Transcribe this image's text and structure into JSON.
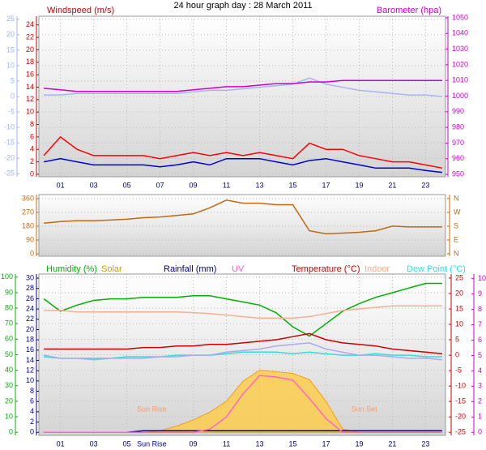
{
  "chart_data": [
    {
      "type": "line",
      "title": "24 hour graph day : 28 March 2011",
      "x": [
        0,
        1,
        2,
        3,
        4,
        5,
        6,
        7,
        8,
        9,
        10,
        11,
        12,
        13,
        14,
        15,
        16,
        17,
        18,
        19,
        20,
        21,
        22,
        23,
        24
      ],
      "xlim": [
        -0.3,
        24.2
      ],
      "xticks": [
        {
          "value": 1,
          "label": "01"
        },
        {
          "value": 3,
          "label": "03"
        },
        {
          "value": 5,
          "label": "05"
        },
        {
          "value": 7,
          "label": "07"
        },
        {
          "value": 9,
          "label": "09"
        },
        11,
        13,
        15,
        17,
        19,
        21,
        23
      ],
      "grid": true,
      "y_axes": [
        {
          "color": "#9fb4ee",
          "side": "left",
          "ylim": [
            -26,
            26
          ],
          "yticks": [
            25,
            20,
            15,
            10,
            5,
            0,
            -5,
            -10,
            -15,
            -20,
            -25
          ]
        },
        {
          "label": "Windspeed (m/s)",
          "color": "#cc0000",
          "side": "left",
          "ylim": [
            -0.4,
            25.4
          ],
          "yticks": [
            24,
            22,
            20,
            18,
            16,
            14,
            12,
            10,
            8,
            6,
            4,
            2,
            0
          ]
        },
        {
          "label": "Barometer (hpa)",
          "color": "#cc00cc",
          "side": "right",
          "ylim": [
            948.5,
            1051
          ],
          "yticks": [
            1050,
            1040,
            1030,
            1020,
            1010,
            1000,
            990,
            980,
            970,
            960,
            950
          ]
        }
      ],
      "series": [
        {
          "color": "#a8b4f0",
          "axis": 0,
          "values": [
            0.5,
            0.5,
            1,
            1,
            1,
            1,
            1,
            1,
            1,
            1.5,
            2,
            2,
            2.5,
            3,
            3.5,
            4,
            6,
            4,
            3,
            2,
            1.5,
            1,
            0.5,
            0.5,
            0
          ]
        },
        {
          "color": "#cc00cc",
          "axis": 2,
          "values": [
            1005,
            1004,
            1003,
            1003,
            1003,
            1003,
            1003,
            1003,
            1003,
            1004,
            1005,
            1006,
            1006,
            1007,
            1008,
            1008,
            1009,
            1009,
            1010,
            1010,
            1010,
            1010,
            1010,
            1010,
            1010
          ]
        },
        {
          "color": "#ff0000",
          "axis": 1,
          "values": [
            3,
            6,
            4,
            3,
            3,
            3,
            3,
            2.5,
            3,
            3.5,
            3,
            3.5,
            3,
            3.5,
            3,
            2.5,
            5,
            4,
            4,
            3,
            2.5,
            2,
            2,
            1.5,
            1
          ]
        },
        {
          "color": "#0000cc",
          "axis": 1,
          "values": [
            2,
            2.5,
            2,
            1.5,
            1.5,
            1.5,
            1.5,
            1.2,
            1.5,
            2,
            1.5,
            2.5,
            2.5,
            2.5,
            2,
            1.5,
            2.2,
            2.5,
            2,
            1.5,
            1,
            1,
            1,
            0.6,
            0.3
          ]
        }
      ]
    },
    {
      "type": "line",
      "x": [
        0,
        1,
        2,
        3,
        4,
        5,
        6,
        7,
        8,
        9,
        10,
        11,
        12,
        13,
        14,
        15,
        16,
        17,
        18,
        19,
        20,
        21,
        22,
        23,
        24
      ],
      "xlim": [
        -0.3,
        24.2
      ],
      "grid": true,
      "y_axes": [
        {
          "color": "#cc6600",
          "side": "left",
          "ylim": [
            -16,
            386
          ],
          "yticks": [
            360,
            270,
            180,
            90,
            0
          ]
        },
        {
          "color": "#cc6600",
          "side": "right",
          "ylim": [
            -16,
            386
          ],
          "yticks": [
            {
              "value": 360,
              "label": "N"
            },
            {
              "value": 270,
              "label": "W"
            },
            {
              "value": 180,
              "label": "S"
            },
            {
              "value": 90,
              "label": "E"
            },
            {
              "value": 0,
              "label": "N"
            }
          ]
        }
      ],
      "series": [
        {
          "color": "#c06a10",
          "axis": 0,
          "values": [
            200,
            210,
            215,
            215,
            220,
            225,
            235,
            240,
            250,
            260,
            300,
            350,
            330,
            330,
            320,
            320,
            150,
            130,
            135,
            140,
            150,
            180,
            175,
            175,
            175
          ]
        }
      ]
    },
    {
      "type": "line",
      "x": [
        0,
        1,
        2,
        3,
        4,
        5,
        6,
        7,
        8,
        9,
        10,
        11,
        12,
        13,
        14,
        15,
        16,
        17,
        18,
        19,
        20,
        21,
        22,
        23,
        24
      ],
      "xlim": [
        -0.3,
        24.2
      ],
      "xticks": [
        {
          "value": 1,
          "label": "01"
        },
        {
          "value": 3,
          "label": "03"
        },
        {
          "value": 5,
          "label": "05"
        },
        {
          "value": 9,
          "label": "09"
        },
        11,
        13,
        15,
        17,
        19,
        21,
        23
      ],
      "grid": true,
      "y_axes": [
        {
          "color": "#00b000",
          "side": "left",
          "ylim": [
            -2,
            102
          ],
          "yticks": [
            100,
            90,
            80,
            70,
            60,
            50,
            40,
            30,
            20,
            10,
            0
          ]
        },
        {
          "color": "#000099",
          "side": "left",
          "ylim": [
            -0.6,
            30.8
          ],
          "yticks": [
            30,
            28,
            26,
            24,
            22,
            20,
            18,
            16,
            14,
            12,
            10,
            8,
            6,
            4,
            2,
            0
          ]
        },
        {
          "color": "#cc0000",
          "side": "right",
          "ylim": [
            -26,
            26.3
          ],
          "yticks": [
            25,
            20,
            15,
            10,
            5,
            0,
            -5,
            -10,
            -15,
            -20,
            -25
          ]
        },
        {
          "color": "#cc00cc",
          "side": "right",
          "ylim": [
            -0.2,
            10.3
          ],
          "yticks": [
            10,
            9,
            8,
            7,
            6,
            5,
            4,
            3,
            2,
            1,
            0
          ]
        }
      ],
      "series": [
        {
          "name": "Solar",
          "color": "#ffcc44",
          "axis": 0,
          "fill": true,
          "values": [
            0,
            0,
            0,
            0,
            0,
            0,
            0,
            1,
            4,
            8,
            13,
            20,
            33,
            40,
            39,
            38,
            34,
            20,
            2,
            0,
            0,
            0,
            0,
            0,
            0
          ]
        },
        {
          "name": "Humidity (%)",
          "color": "#00b000",
          "axis": 0,
          "values": [
            86,
            78,
            82,
            85,
            86,
            86,
            87,
            87,
            87,
            88,
            88,
            86,
            84,
            82,
            77,
            68,
            62,
            70,
            78,
            83,
            87,
            90,
            93,
            96,
            96
          ]
        },
        {
          "name": "Rainfall (mm)",
          "color": "#00008b",
          "axis": 1,
          "values": [
            0,
            0,
            0,
            0,
            0,
            0,
            0.3,
            0.3,
            0.3,
            0.3,
            0.3,
            0.3,
            0.3,
            0.3,
            0.3,
            0.3,
            0.3,
            0.3,
            0.3,
            0.3,
            0.3,
            0.3,
            0.3,
            0.3,
            0.3
          ]
        },
        {
          "name": "UV",
          "color": "#ff66cc",
          "axis": 3,
          "values": [
            0,
            0,
            0,
            0,
            0,
            0,
            0,
            0,
            0,
            0,
            0.2,
            1,
            2.5,
            3.7,
            3.6,
            3.4,
            2.2,
            0.9,
            0,
            0,
            0,
            0,
            0,
            0,
            0
          ]
        },
        {
          "name": "Temperature (°C)",
          "color": "#cc0000",
          "axis": 2,
          "values": [
            2,
            2,
            2,
            2,
            2,
            2,
            2.5,
            2.5,
            3,
            3,
            3.5,
            3.5,
            4,
            4.5,
            5,
            6,
            7,
            5,
            4,
            3.5,
            3,
            2,
            1.5,
            1,
            0.5
          ]
        },
        {
          "name": "Indoor",
          "color": "#f4b090",
          "axis": 2,
          "values": [
            14.5,
            14.5,
            14,
            14,
            14,
            14,
            14,
            14,
            14,
            13.8,
            13.5,
            13,
            12.5,
            12,
            12,
            12,
            12.5,
            13.5,
            14.5,
            15,
            15.5,
            16,
            16,
            16,
            16
          ]
        },
        {
          "name": "Dew Point (°C)",
          "color": "#33dddd",
          "axis": 2,
          "values": [
            -0.5,
            -1,
            -1,
            -1,
            -1,
            -0.5,
            -0.5,
            -0.5,
            0,
            0,
            0,
            0.5,
            1,
            1,
            1,
            0.5,
            1,
            0.5,
            0,
            0,
            0.5,
            0,
            0,
            -0.5,
            -0.5
          ]
        },
        {
          "color": "#aaaaee",
          "axis": 2,
          "values": [
            0,
            -1,
            -1,
            -1.5,
            -1,
            -1,
            -1,
            -0.5,
            -0.5,
            0,
            0,
            1,
            1.5,
            2,
            3,
            3.5,
            4,
            2,
            1,
            0,
            0,
            -0.5,
            -1,
            -1,
            -1.5
          ]
        }
      ],
      "annotations": [
        {
          "text": "Sun Rise",
          "x": 6.5,
          "color": "#ff9966",
          "place": "plot"
        },
        {
          "text": "Sun Set",
          "x": 19.3,
          "color": "#ff9966",
          "place": "plot"
        },
        {
          "text": "Sun Rise",
          "x": 6.5,
          "color": "#000099",
          "place": "axis"
        }
      ]
    }
  ]
}
